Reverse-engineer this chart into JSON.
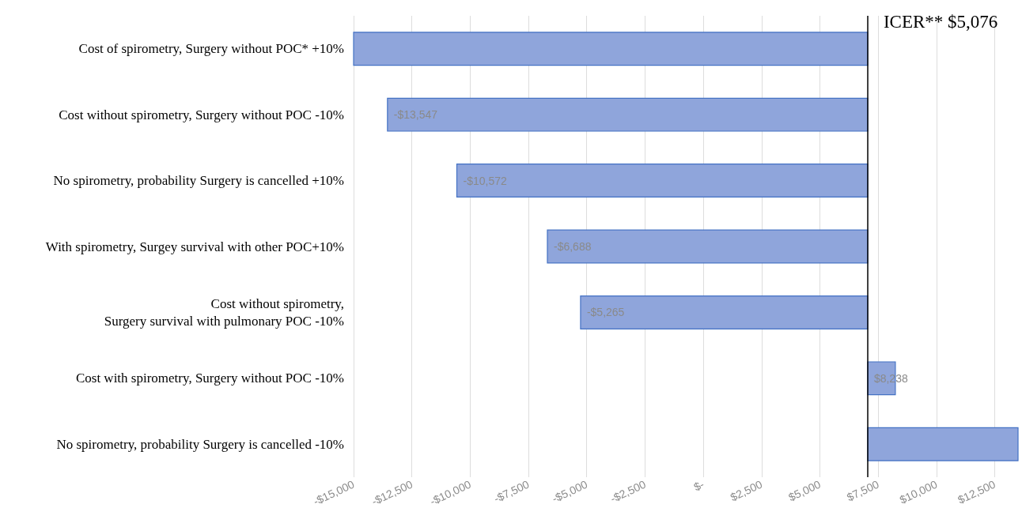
{
  "chart_data": {
    "type": "bar",
    "orientation": "horizontal",
    "categories": [
      "Cost of spirometry, Surgery without POC* +10%",
      "Cost without spirometry, Surgery without POC -10%",
      "No spirometry, probability Surgery is cancelled +10%",
      "With spirometry, Surgey survival with other POC+10%",
      "Cost without spirometry,\nSurgery survival with pulmonary POC -10%",
      "Cost with spirometry, Surgery without POC -10%",
      "No spirometry, probability Surgery is cancelled -10%"
    ],
    "base": [
      7050,
      7050,
      7050,
      7050,
      7050,
      7050,
      7050
    ],
    "values": [
      -22050,
      -20597,
      -17622,
      -13738,
      -12315,
      1188,
      6450
    ],
    "value_labels": [
      null,
      "-$13,547",
      "-$10,572",
      "-$6,688",
      "-$5,265",
      "$8,238",
      null
    ],
    "color": "#8fa5db",
    "xlim": [
      -15000,
      13500
    ],
    "xticks": [
      {
        "value": -15000,
        "label": "-$15,000"
      },
      {
        "value": -12500,
        "label": "-$12,500"
      },
      {
        "value": -10000,
        "label": "-$10,000"
      },
      {
        "value": -7500,
        "label": "-$7,500"
      },
      {
        "value": -5000,
        "label": "-$5,000"
      },
      {
        "value": -2500,
        "label": "-$2,500"
      },
      {
        "value": 0,
        "label": "$-"
      },
      {
        "value": 2500,
        "label": "$2,500"
      },
      {
        "value": 5000,
        "label": "$5,000"
      },
      {
        "value": 7500,
        "label": "$7,500"
      },
      {
        "value": 10000,
        "label": "$10,000"
      },
      {
        "value": 12500,
        "label": "$12,500"
      }
    ],
    "ref_lines": [
      {
        "axis": "x",
        "value": 7050,
        "label": "ICER** $5,076",
        "color": "#000000"
      }
    ],
    "grid": "x"
  }
}
